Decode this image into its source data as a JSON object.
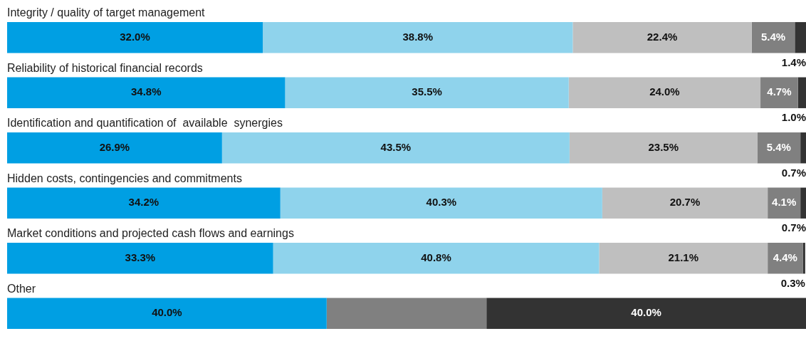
{
  "chart_data": {
    "type": "bar",
    "orientation": "horizontal",
    "stacked": true,
    "legend": false,
    "tick_labels": false,
    "xlim": [
      0,
      100
    ],
    "categories": [
      "Integrity / quality of target management",
      "Reliability of historical financial records",
      "Identification and quantification of  available  synergies",
      "Hidden costs, contingencies and commitments",
      "Market conditions and projected cash flows and earnings",
      "Other"
    ],
    "series": [
      {
        "color": "#009fe3",
        "values": [
          32.0,
          34.8,
          26.9,
          34.2,
          33.3,
          40.0
        ],
        "value_labels": [
          "32.0%",
          "34.8%",
          "26.9%",
          "34.2%",
          "33.3%",
          "40.0%"
        ]
      },
      {
        "color": "#8fd3ec",
        "values": [
          38.8,
          35.5,
          43.5,
          40.3,
          40.8,
          null
        ],
        "value_labels": [
          "38.8%",
          "35.5%",
          "43.5%",
          "40.3%",
          "40.8%",
          null
        ]
      },
      {
        "color": "#bfbfbf",
        "values": [
          22.4,
          24.0,
          23.5,
          20.7,
          21.1,
          null
        ],
        "value_labels": [
          "22.4%",
          "24.0%",
          "23.5%",
          "20.7%",
          "21.1%",
          null
        ]
      },
      {
        "color": "#808080",
        "values": [
          5.4,
          4.7,
          5.4,
          4.1,
          4.4,
          20
        ],
        "value_labels": [
          "5.4%",
          "4.7%",
          "5.4%",
          "4.1%",
          "4.4%",
          null
        ]
      },
      {
        "color": "#333333",
        "values": [
          1.4,
          1.0,
          0.7,
          0.7,
          0.3,
          40.0
        ],
        "value_labels": [
          "1.4%",
          "1.0%",
          "0.7%",
          "0.7%",
          "0.3%",
          "40.0%"
        ]
      }
    ]
  }
}
